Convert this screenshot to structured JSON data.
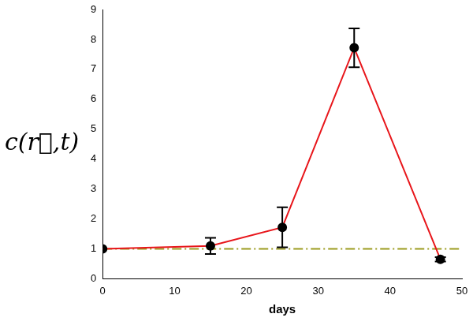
{
  "chart_data": {
    "type": "line",
    "y_label": "c(r⃗,t)",
    "x_label": "days",
    "x": [
      0,
      15,
      25,
      35,
      47
    ],
    "values": [
      1.0,
      1.1,
      1.72,
      7.72,
      0.65
    ],
    "errors": [
      null,
      0.27,
      0.67,
      0.65,
      0.07
    ],
    "color": "#e8161b",
    "marker": "circle",
    "xlim": [
      0,
      50
    ],
    "xticks": [
      0,
      10,
      20,
      30,
      40,
      50
    ],
    "ylim": [
      0,
      9
    ],
    "yticks": [
      0,
      1,
      2,
      3,
      4,
      5,
      6,
      7,
      8,
      9
    ],
    "grid": false,
    "reference_lines": [
      {
        "y": 1,
        "color": "#9c9c1f",
        "line_style": "dashdot"
      }
    ]
  }
}
